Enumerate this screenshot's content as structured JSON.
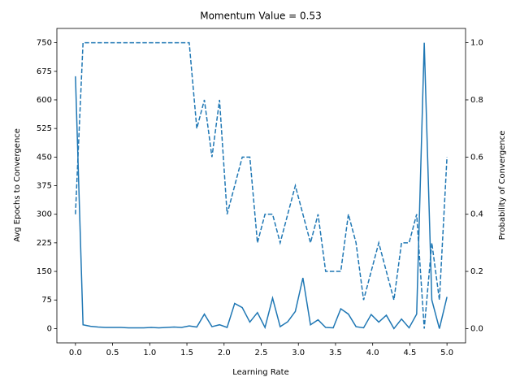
{
  "chart_data": {
    "type": "line",
    "title": "Momentum Value = 0.53",
    "xlabel": "Learning Rate",
    "ylabel": "Avg Epochs to Convergence",
    "y2label": "Probability of Convergence",
    "x": [
      0,
      0.102,
      0.204,
      0.306,
      0.408,
      0.51,
      0.612,
      0.714,
      0.816,
      0.918,
      1.02,
      1.122,
      1.224,
      1.327,
      1.429,
      1.531,
      1.633,
      1.735,
      1.837,
      1.939,
      2.041,
      2.143,
      2.245,
      2.347,
      2.449,
      2.551,
      2.653,
      2.755,
      2.857,
      2.959,
      3.061,
      3.163,
      3.265,
      3.367,
      3.469,
      3.571,
      3.673,
      3.776,
      3.878,
      3.98,
      4.082,
      4.184,
      4.286,
      4.388,
      4.49,
      4.592,
      4.694,
      4.796,
      4.898,
      5.0
    ],
    "series": [
      {
        "color": "#1f77b4",
        "style": "solid",
        "axis": "y",
        "values": [
          662,
          10,
          6,
          4,
          3,
          3,
          3,
          2,
          2,
          2,
          3,
          2,
          3,
          4,
          3,
          7,
          4,
          38,
          5,
          10,
          3,
          66,
          55,
          17,
          42,
          3,
          80,
          5,
          18,
          45,
          133,
          10,
          23,
          3,
          2,
          52,
          38,
          5,
          2,
          37,
          17,
          35,
          0,
          25,
          2,
          38,
          750,
          75,
          0,
          83
        ]
      },
      {
        "color": "#1f77b4",
        "style": "dashed",
        "axis": "y2",
        "values": [
          0.4,
          1.0,
          1.0,
          1.0,
          1.0,
          1.0,
          1.0,
          1.0,
          1.0,
          1.0,
          1.0,
          1.0,
          1.0,
          1.0,
          1.0,
          1.0,
          0.7,
          0.8,
          0.6,
          0.8,
          0.4,
          0.5,
          0.6,
          0.6,
          0.3,
          0.4,
          0.4,
          0.3,
          0.4,
          0.5,
          0.4,
          0.3,
          0.4,
          0.2,
          0.2,
          0.2,
          0.4,
          0.3,
          0.1,
          0.2,
          0.3,
          0.2,
          0.1,
          0.3,
          0.3,
          0.4,
          0.0,
          0.3,
          0.1,
          0.6
        ]
      }
    ],
    "xlim": [
      -0.25,
      5.25
    ],
    "xticks": [
      {
        "value": 0,
        "label": "0.0"
      },
      {
        "value": 0.5,
        "label": "0.5"
      },
      {
        "value": 1,
        "label": "1.0"
      },
      {
        "value": 1.5,
        "label": "1.5"
      },
      {
        "value": 2,
        "label": "2.0"
      },
      {
        "value": 2.5,
        "label": "2.5"
      },
      {
        "value": 3,
        "label": "3.0"
      },
      {
        "value": 3.5,
        "label": "3.5"
      },
      {
        "value": 4,
        "label": "4.0"
      },
      {
        "value": 4.5,
        "label": "4.5"
      },
      {
        "value": 5,
        "label": "5.0"
      }
    ],
    "ylim": [
      -37.5,
      787.5
    ],
    "yticks": [
      0,
      75,
      150,
      225,
      300,
      375,
      450,
      525,
      600,
      675,
      750
    ],
    "y2lim": [
      -0.05,
      1.05
    ],
    "y2ticks": [
      {
        "value": 0,
        "label": "0.0"
      },
      {
        "value": 0.2,
        "label": "0.2"
      },
      {
        "value": 0.4,
        "label": "0.4"
      },
      {
        "value": 0.6,
        "label": "0.6"
      },
      {
        "value": 0.8,
        "label": "0.8"
      },
      {
        "value": 1.0,
        "label": "1.0"
      }
    ],
    "grid": false
  }
}
